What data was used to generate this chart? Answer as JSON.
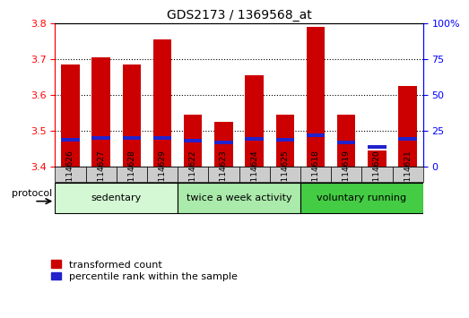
{
  "title": "GDS2173 / 1369568_at",
  "categories": [
    "GSM114626",
    "GSM114627",
    "GSM114628",
    "GSM114629",
    "GSM114622",
    "GSM114623",
    "GSM114624",
    "GSM114625",
    "GSM114618",
    "GSM114619",
    "GSM114620",
    "GSM114621"
  ],
  "red_values": [
    3.685,
    3.705,
    3.685,
    3.755,
    3.545,
    3.525,
    3.655,
    3.545,
    3.79,
    3.545,
    3.445,
    3.625
  ],
  "blue_values": [
    3.475,
    3.48,
    3.48,
    3.48,
    3.472,
    3.468,
    3.476,
    3.474,
    3.488,
    3.468,
    3.455,
    3.476
  ],
  "y_min": 3.4,
  "y_max": 3.8,
  "y_ticks_left": [
    3.4,
    3.5,
    3.6,
    3.7,
    3.8
  ],
  "y_ticks_right": [
    0,
    25,
    50,
    75,
    100
  ],
  "bar_color": "#cc0000",
  "blue_color": "#2222cc",
  "groups": [
    {
      "label": "sedentary",
      "start": 0,
      "end": 4,
      "color": "#d4f7d4"
    },
    {
      "label": "twice a week activity",
      "start": 4,
      "end": 8,
      "color": "#aaeaaa"
    },
    {
      "label": "voluntary running",
      "start": 8,
      "end": 12,
      "color": "#44cc44"
    }
  ],
  "protocol_label": "protocol",
  "legend_red": "transformed count",
  "legend_blue": "percentile rank within the sample",
  "bar_width": 0.6,
  "background_color": "#ffffff",
  "xtick_box_color": "#cccccc",
  "blue_bar_height": 0.01
}
